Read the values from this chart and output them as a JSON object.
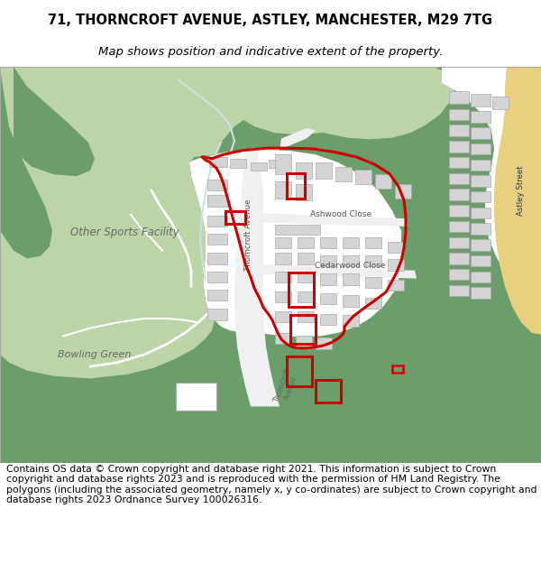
{
  "title_line1": "71, THORNCROFT AVENUE, ASTLEY, MANCHESTER, M29 7TG",
  "title_line2": "Map shows position and indicative extent of the property.",
  "footer_text": "Contains OS data © Crown copyright and database right 2021. This information is subject to Crown copyright and database rights 2023 and is reproduced with the permission of HM Land Registry. The polygons (including the associated geometry, namely x, y co-ordinates) are subject to Crown copyright and database rights 2023 Ordnance Survey 100026316.",
  "title_fontsize": 10.5,
  "subtitle_fontsize": 9.5,
  "footer_fontsize": 7.8,
  "bg_color": "#ffffff",
  "green_dark": "#6b9e6b",
  "green_light": "#bdd4a8",
  "green_medium": "#8bb878",
  "road_color": "#f0f0f0",
  "building_color": "#d4d4d4",
  "building_border": "#aaaaaa",
  "plot_border_color": "#cc0000",
  "highlight_color": "#cc0000",
  "yellow_road": "#e8d080",
  "white": "#ffffff",
  "light_blue_path": "#cce0e8"
}
